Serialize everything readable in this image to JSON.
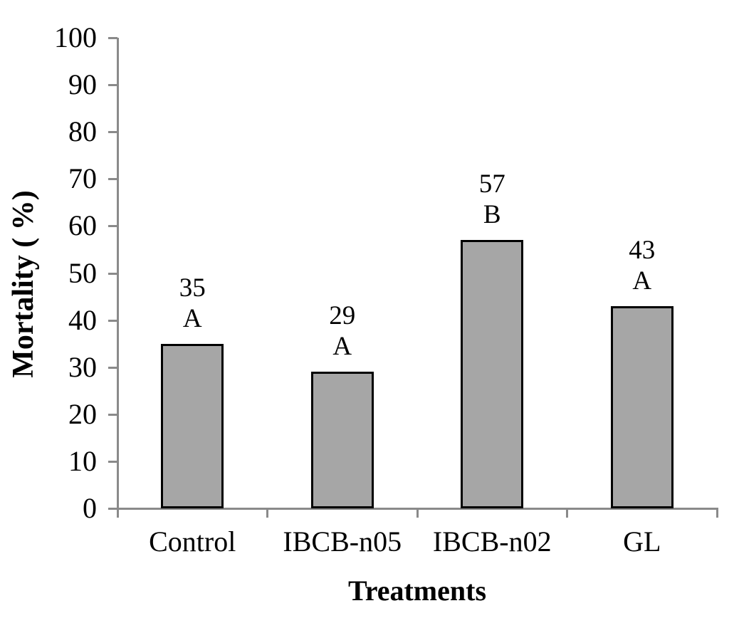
{
  "chart_data": {
    "type": "bar",
    "title": "",
    "xlabel": "Treatments",
    "ylabel": "Mortality ( %)",
    "categories": [
      "Control",
      "IBCB-n05",
      "IBCB-n02",
      "GL"
    ],
    "values": [
      35,
      29,
      57,
      43
    ],
    "significance_letters": [
      "A",
      "A",
      "B",
      "A"
    ],
    "bar_value_labels": [
      "35",
      "29",
      "57",
      "43"
    ],
    "ylim": [
      0,
      100
    ],
    "yticks": [
      0,
      10,
      20,
      30,
      40,
      50,
      60,
      70,
      80,
      90,
      100
    ],
    "grid": false,
    "legend": false,
    "colors": {
      "bar_fill": "#a6a6a6",
      "bar_border": "#000000",
      "axis": "#8a8a8a",
      "text": "#000000",
      "background": "#ffffff"
    }
  }
}
